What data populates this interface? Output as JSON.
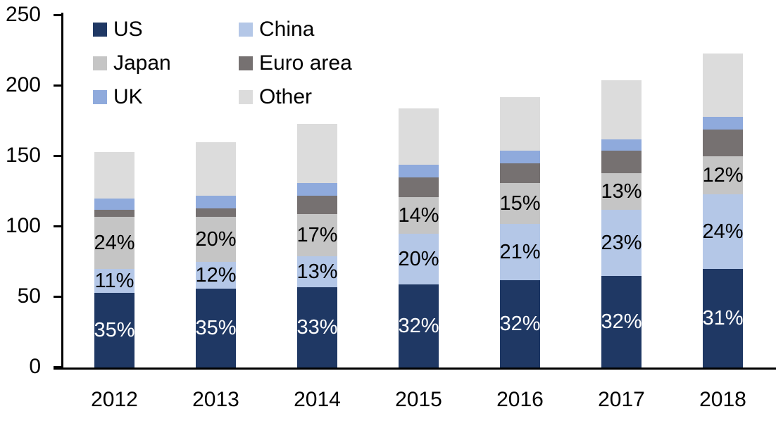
{
  "chart_data": {
    "type": "bar",
    "stacked": true,
    "categories": [
      "2012",
      "2013",
      "2014",
      "2015",
      "2016",
      "2017",
      "2018"
    ],
    "series": [
      {
        "name": "US",
        "color": "#1f3864",
        "values": [
          53,
          56,
          57,
          59,
          62,
          65,
          70
        ],
        "labels": [
          "35%",
          "35%",
          "33%",
          "32%",
          "32%",
          "32%",
          "31%"
        ],
        "label_color": "#ffffff"
      },
      {
        "name": "China",
        "color": "#b4c7e7",
        "values": [
          17,
          19,
          22,
          36,
          40,
          47,
          53
        ],
        "labels": [
          "11%",
          "12%",
          "13%",
          "20%",
          "21%",
          "23%",
          "24%"
        ],
        "label_color": "#000000"
      },
      {
        "name": "Japan",
        "color": "#c5c5c5",
        "values": [
          37,
          32,
          30,
          26,
          29,
          26,
          27
        ],
        "labels": [
          "24%",
          "20%",
          "17%",
          "14%",
          "15%",
          "13%",
          "12%"
        ],
        "label_color": "#000000"
      },
      {
        "name": "Euro area",
        "color": "#767171",
        "values": [
          5,
          6,
          13,
          14,
          14,
          16,
          19
        ],
        "labels": null,
        "label_color": null
      },
      {
        "name": "UK",
        "color": "#8faadc",
        "values": [
          8,
          9,
          9,
          9,
          9,
          8,
          9
        ],
        "labels": null,
        "label_color": null
      },
      {
        "name": "Other",
        "color": "#dcdcdc",
        "values": [
          33,
          38,
          42,
          40,
          38,
          42,
          45
        ],
        "labels": null,
        "label_color": null
      }
    ],
    "totals": [
      153,
      160,
      173,
      184,
      192,
      204,
      223
    ],
    "title": "",
    "xlabel": "",
    "ylabel": "",
    "ylim": [
      0,
      250
    ],
    "yticks": [
      "0",
      "50",
      "100",
      "150",
      "200",
      "250"
    ],
    "grid": false,
    "axis_color": "#000000",
    "background_color": "#ffffff"
  },
  "legend": {
    "position": "top-left",
    "columns": 2,
    "items": [
      {
        "label": "US",
        "color": "#1f3864"
      },
      {
        "label": "China",
        "color": "#b4c7e7"
      },
      {
        "label": "Japan",
        "color": "#c5c5c5"
      },
      {
        "label": "Euro area",
        "color": "#767171"
      },
      {
        "label": "UK",
        "color": "#8faadc"
      },
      {
        "label": "Other",
        "color": "#dcdcdc"
      }
    ]
  }
}
